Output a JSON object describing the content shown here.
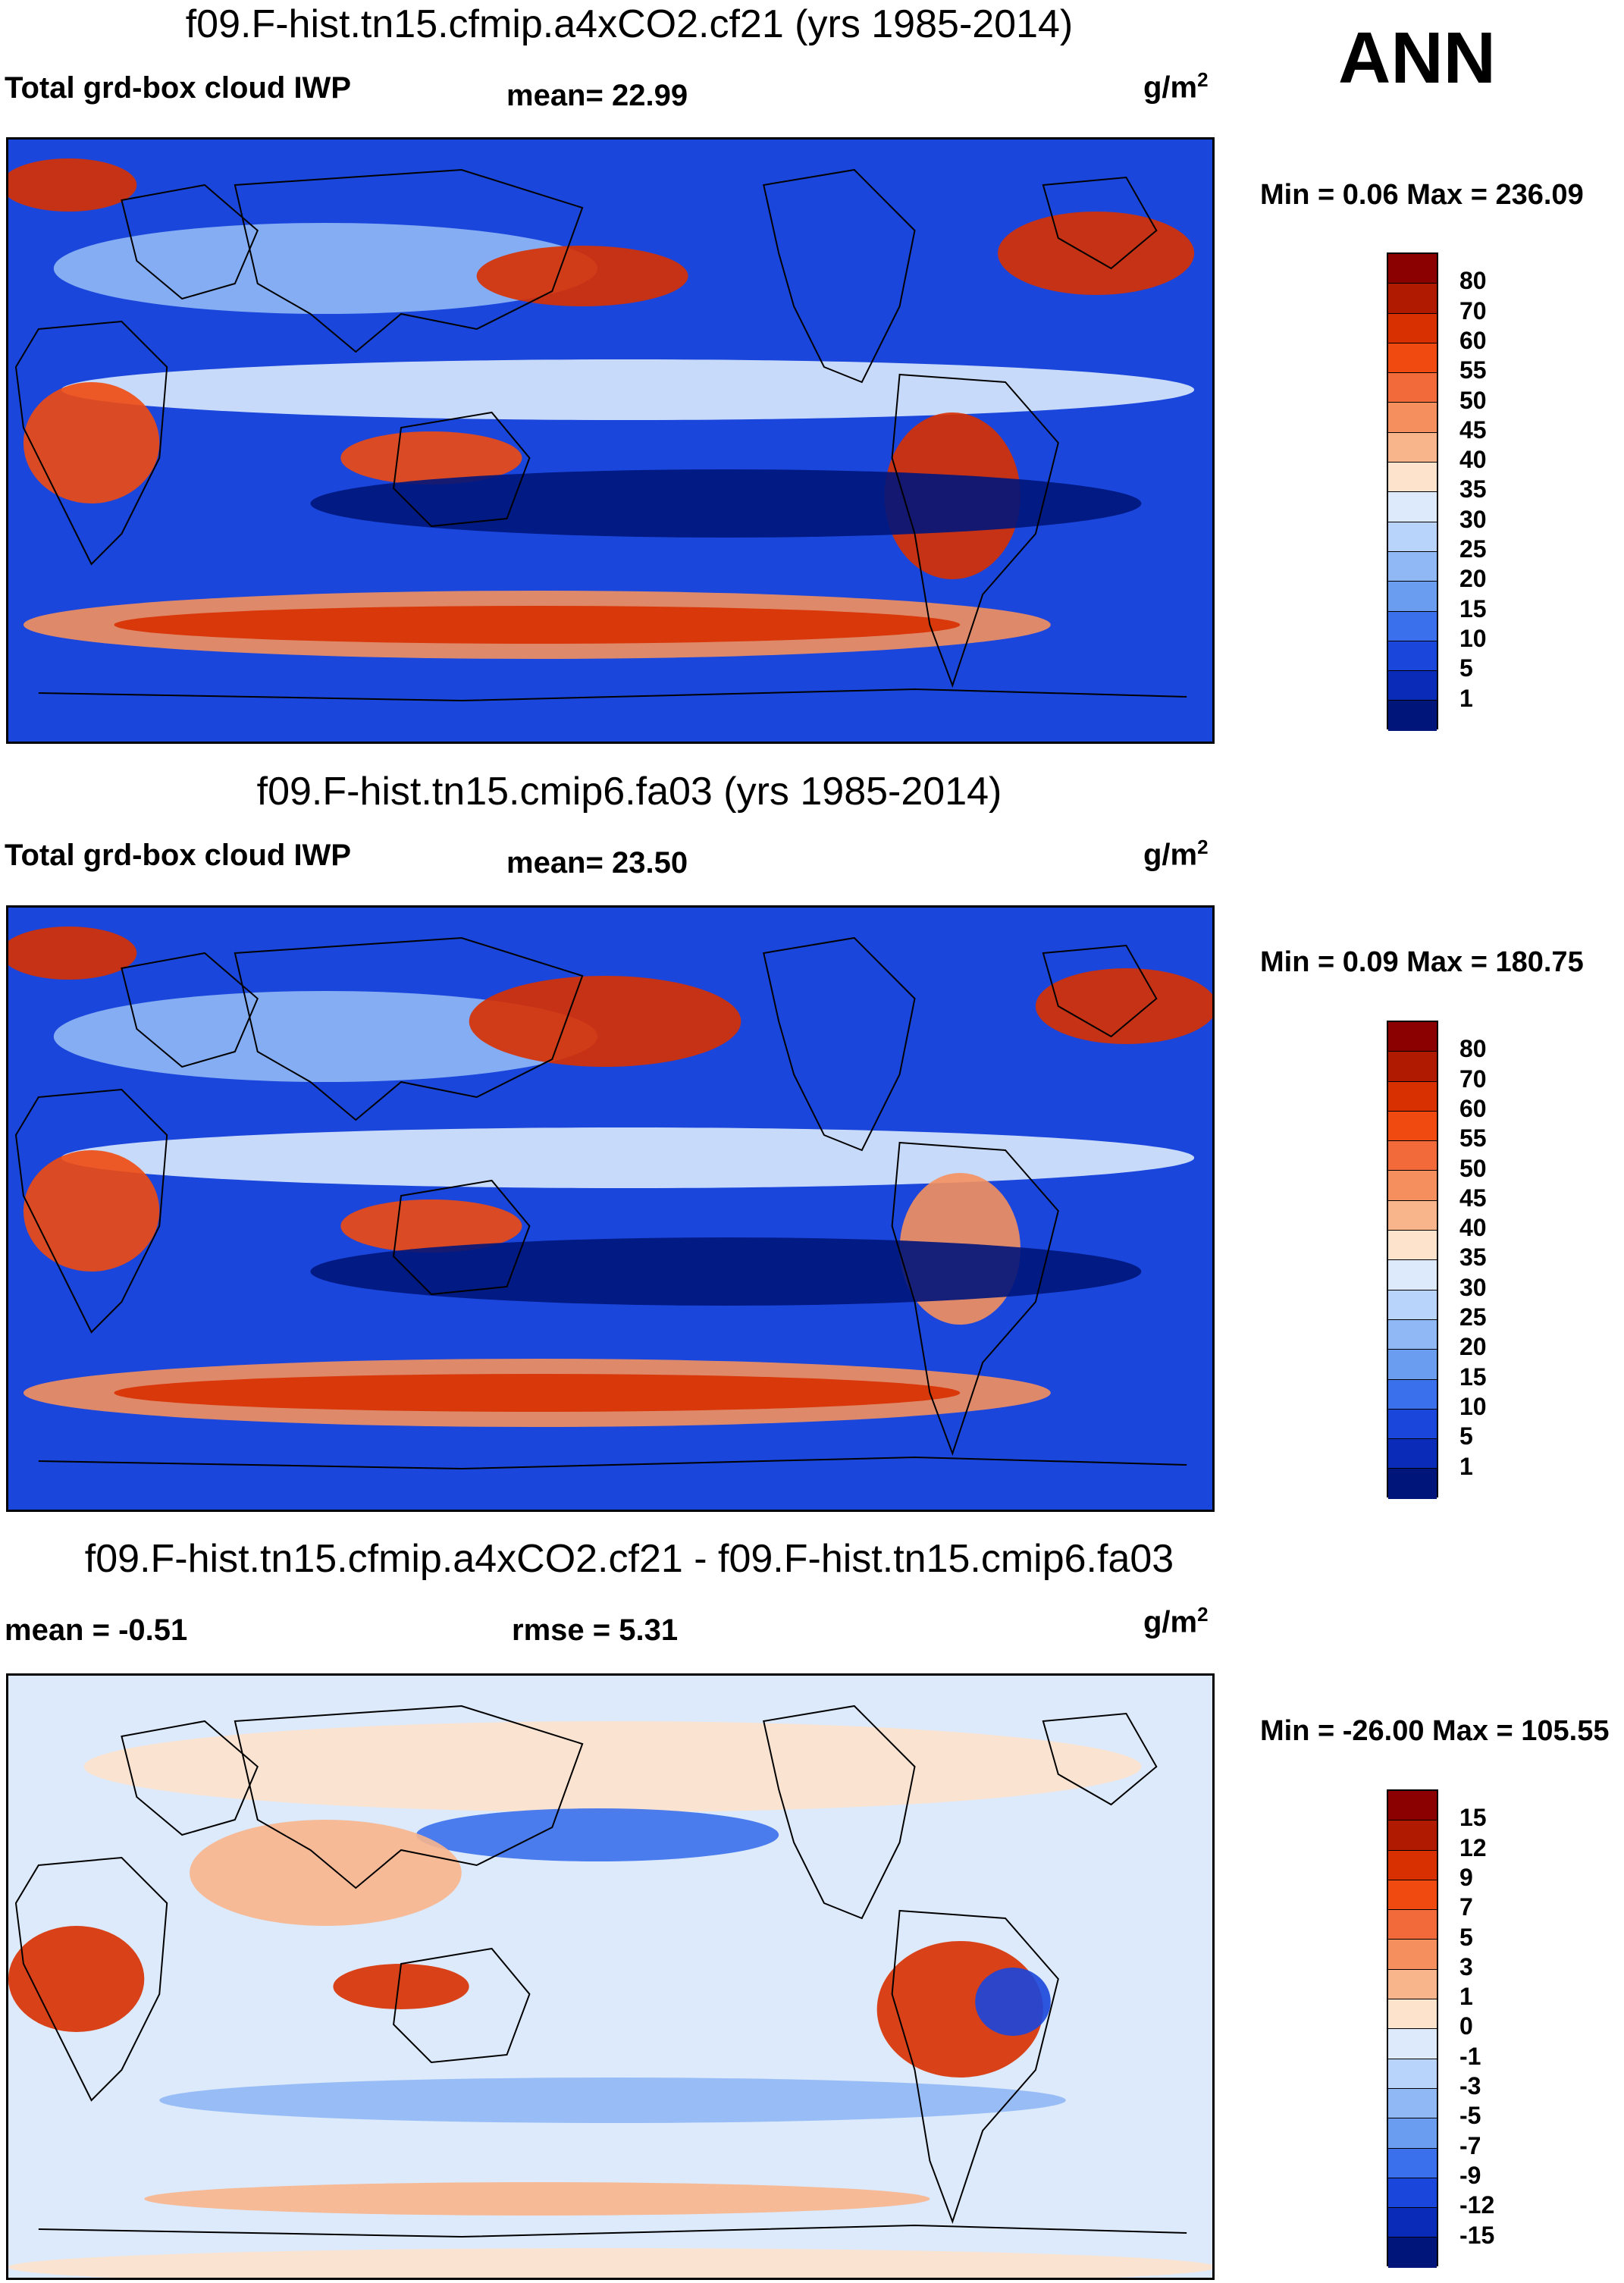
{
  "season": "ANN",
  "panels": [
    {
      "title": "f09.F-hist.tn15.cfmip.a4xCO2.cf21 (yrs 1985-2014)",
      "left_label": "Total grd-box cloud IWP",
      "mean_text": "mean=  22.99",
      "units_base": "g/m",
      "units_sup": "2",
      "minmax": "Min =   0.06 Max = 236.09",
      "colorbar": {
        "labels": [
          "80",
          "70",
          "60",
          "55",
          "50",
          "45",
          "40",
          "35",
          "30",
          "25",
          "20",
          "15",
          "10",
          "5",
          "1"
        ],
        "colors": [
          "#8b0000",
          "#b01a00",
          "#d83000",
          "#f04a10",
          "#f26a3a",
          "#f5905e",
          "#f8b58c",
          "#fde2cc",
          "#dceafc",
          "#b8d4fa",
          "#90b8f5",
          "#6a9cf0",
          "#3a70ec",
          "#1a46dc",
          "#0a2ab8",
          "#00157a"
        ]
      },
      "map_label": "cloud-iwp-map-cf21"
    },
    {
      "title": "f09.F-hist.tn15.cmip6.fa03 (yrs 1985-2014)",
      "left_label": "Total grd-box cloud IWP",
      "mean_text": "mean=  23.50",
      "units_base": "g/m",
      "units_sup": "2",
      "minmax": "Min =   0.09 Max = 180.75",
      "colorbar": {
        "labels": [
          "80",
          "70",
          "60",
          "55",
          "50",
          "45",
          "40",
          "35",
          "30",
          "25",
          "20",
          "15",
          "10",
          "5",
          "1"
        ],
        "colors": [
          "#8b0000",
          "#b01a00",
          "#d83000",
          "#f04a10",
          "#f26a3a",
          "#f5905e",
          "#f8b58c",
          "#fde2cc",
          "#dceafc",
          "#b8d4fa",
          "#90b8f5",
          "#6a9cf0",
          "#3a70ec",
          "#1a46dc",
          "#0a2ab8",
          "#00157a"
        ]
      },
      "map_label": "cloud-iwp-map-fa03"
    },
    {
      "title": "f09.F-hist.tn15.cfmip.a4xCO2.cf21 - f09.F-hist.tn15.cmip6.fa03",
      "left_label": "mean =  -0.51",
      "mean_text": "rmse =    5.31",
      "units_base": "g/m",
      "units_sup": "2",
      "minmax": "Min = -26.00 Max = 105.55",
      "colorbar": {
        "labels": [
          "15",
          "12",
          "9",
          "7",
          "5",
          "3",
          "1",
          "0",
          "-1",
          "-3",
          "-5",
          "-7",
          "-9",
          "-12",
          "-15"
        ],
        "colors": [
          "#8b0000",
          "#b01a00",
          "#d83000",
          "#f04a10",
          "#f26a3a",
          "#f5905e",
          "#f8b58c",
          "#fde2cc",
          "#dceafc",
          "#b8d4fa",
          "#90b8f5",
          "#6a9cf0",
          "#3a70ec",
          "#1a46dc",
          "#0a2ab8",
          "#00157a"
        ]
      },
      "map_label": "cloud-iwp-difference-map"
    }
  ]
}
